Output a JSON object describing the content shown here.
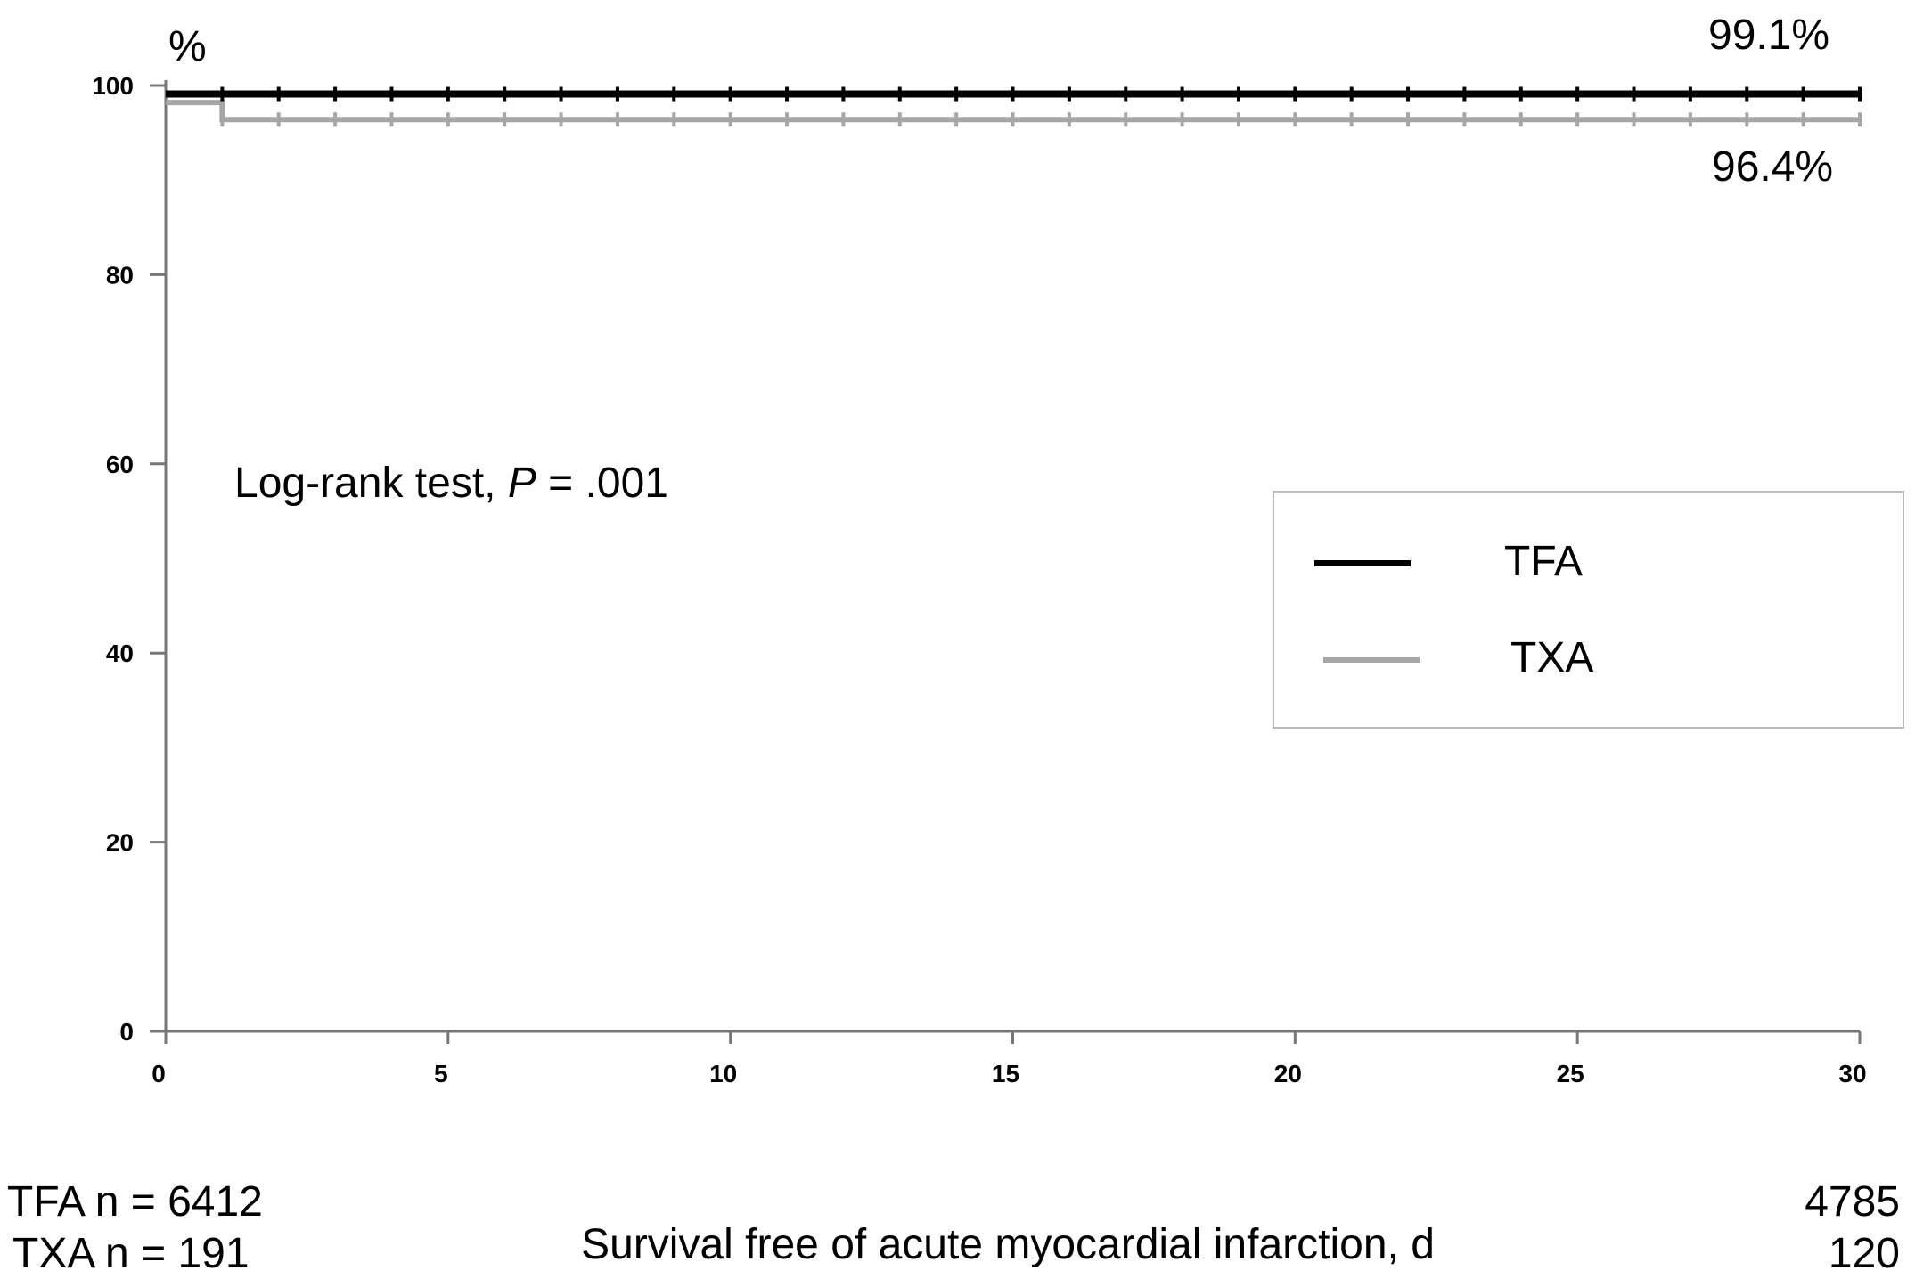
{
  "chart_data": {
    "type": "line",
    "subtype": "kaplan-meier step",
    "ylabel": "%",
    "xlabel": "Survival free of acute myocardial infarction, d",
    "xlim": [
      0,
      30
    ],
    "ylim": [
      0,
      100
    ],
    "xticks": [
      0,
      5,
      10,
      15,
      20,
      25,
      30
    ],
    "yticks": [
      0,
      20,
      40,
      60,
      80,
      100
    ],
    "grid": false,
    "legend_position": "right-middle",
    "annotation": {
      "prefix": "Log-rank test, ",
      "p_label": "P",
      "suffix": " = .001"
    },
    "series": [
      {
        "name": "TFA",
        "color": "#000000",
        "steps": [
          [
            0,
            99.1
          ],
          [
            30,
            99.1
          ]
        ],
        "end_label": "99.1%",
        "n_start": "TFA n = 6412",
        "n_end": "4785"
      },
      {
        "name": "TXA",
        "color": "#a6a6a6",
        "steps": [
          [
            0,
            98.2
          ],
          [
            1,
            96.4
          ],
          [
            30,
            96.4
          ]
        ],
        "end_label": "96.4%",
        "n_start": "TXA n = 191",
        "n_end": "120"
      }
    ]
  }
}
